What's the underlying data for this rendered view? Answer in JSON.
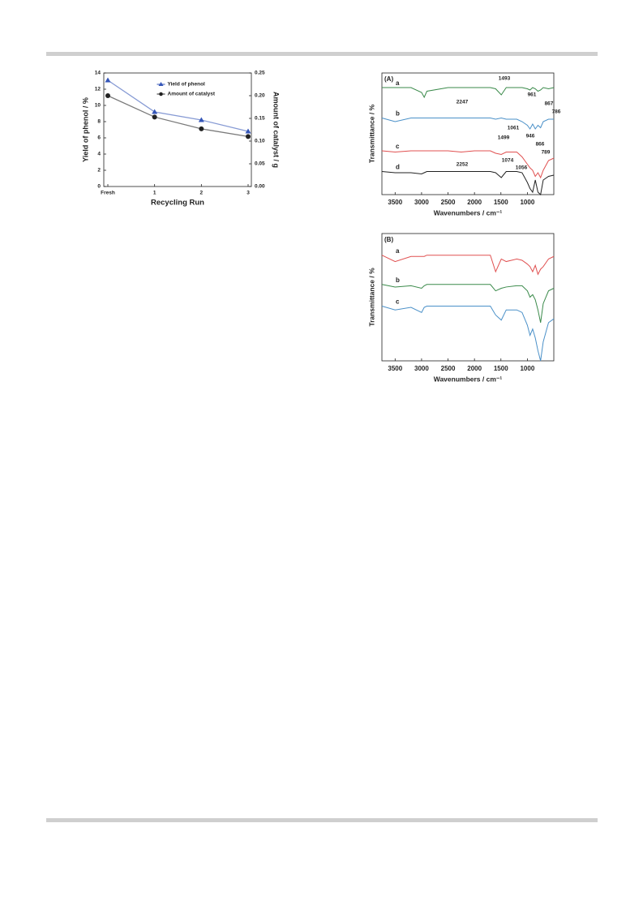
{
  "chart_data": [
    {
      "type": "line",
      "categories": [
        "Fresh",
        "1",
        "2",
        "3"
      ],
      "xlabel": "Recycling Run",
      "ylabel": "Yield of phenol / %",
      "y2label": "Amount of catalyst / g",
      "ylim": [
        0,
        14
      ],
      "yticks": [
        0,
        2,
        4,
        6,
        8,
        10,
        12,
        14
      ],
      "y2lim": [
        0,
        0.25
      ],
      "y2ticks": [
        {
          "value": 0,
          "label": "0.00"
        },
        0.05,
        {
          "value": 0.1,
          "label": "0.10"
        },
        0.15,
        {
          "value": 0.2,
          "label": "0.20"
        },
        0.25
      ],
      "legend": "top-right",
      "series": [
        {
          "name": "Yield of phenol",
          "color": "#3556b8",
          "marker": "triangle",
          "values": [
            13.1,
            9.2,
            8.2,
            6.8
          ]
        },
        {
          "name": "Amount of catalyst",
          "color": "#222222",
          "marker": "circle",
          "axis": "y2",
          "values": [
            0.2,
            0.153,
            0.127,
            0.11
          ]
        }
      ]
    },
    {
      "type": "spectrum",
      "panel_label": "(A)",
      "xlabel": "Wavenumbers / cm⁻¹",
      "ylabel": "Transmittance / %",
      "x": [
        3750,
        3500,
        3200,
        3000,
        2950,
        2900,
        2500,
        2250,
        2000,
        1700,
        1600,
        1493,
        1400,
        1200,
        1100,
        1000,
        950,
        900,
        850,
        800,
        750,
        700,
        600,
        500
      ],
      "xlim": [
        3750,
        500
      ],
      "xticks": [
        3500,
        3000,
        2500,
        2000,
        1500,
        1000
      ],
      "ylim": [
        0,
        100
      ],
      "series": [
        {
          "name": "a",
          "color": "#3a8a4a",
          "values": [
            88,
            88,
            88,
            84,
            80,
            85,
            88,
            88,
            88,
            88,
            87,
            82,
            88,
            88,
            88,
            87,
            86,
            88,
            87,
            85,
            86,
            88,
            87,
            88
          ]
        },
        {
          "name": "b",
          "color": "#4a90c8",
          "values": [
            63,
            60,
            63,
            63,
            63,
            63,
            63,
            63,
            63,
            63,
            62,
            63,
            62,
            62,
            60,
            57,
            54,
            58,
            54,
            57,
            55,
            60,
            62,
            62
          ]
        },
        {
          "name": "c",
          "color": "#e05050",
          "values": [
            36,
            35,
            36,
            36,
            36,
            36,
            36,
            35,
            36,
            36,
            34,
            33,
            35,
            35,
            31,
            25,
            22,
            20,
            15,
            18,
            14,
            20,
            28,
            30
          ]
        },
        {
          "name": "d",
          "color": "#222222",
          "values": [
            19,
            18,
            18,
            17,
            18,
            19,
            19,
            19,
            19,
            19,
            18,
            14,
            19,
            19,
            18,
            10,
            5,
            2,
            12,
            2,
            0,
            12,
            15,
            16
          ]
        }
      ],
      "annotations": [
        "1493",
        "2247",
        "961",
        "867",
        "786",
        "1061",
        "1499",
        "946",
        "866",
        "2252",
        "1074",
        "789",
        "1056"
      ]
    },
    {
      "type": "spectrum",
      "panel_label": "(B)",
      "xlabel": "Wavenumbers / cm⁻¹",
      "ylabel": "Transmittance / %",
      "x": [
        3750,
        3500,
        3200,
        3000,
        2950,
        2900,
        2500,
        2250,
        2000,
        1700,
        1600,
        1493,
        1400,
        1200,
        1100,
        1000,
        950,
        900,
        850,
        800,
        750,
        700,
        600,
        500
      ],
      "xlim": [
        3750,
        500
      ],
      "xticks": [
        3500,
        3000,
        2500,
        2000,
        1500,
        1000
      ],
      "ylim": [
        0,
        100
      ],
      "series": [
        {
          "name": "a",
          "color": "#e05050",
          "values": [
            83,
            78,
            82,
            82,
            82,
            83,
            83,
            83,
            83,
            83,
            70,
            80,
            78,
            80,
            79,
            76,
            74,
            70,
            75,
            68,
            72,
            74,
            80,
            82
          ]
        },
        {
          "name": "b",
          "color": "#3a8a4a",
          "values": [
            60,
            58,
            59,
            57,
            59,
            60,
            60,
            60,
            60,
            60,
            55,
            57,
            58,
            59,
            59,
            55,
            50,
            52,
            48,
            40,
            30,
            45,
            55,
            57
          ]
        },
        {
          "name": "c",
          "color": "#4a90c8",
          "values": [
            43,
            40,
            42,
            38,
            42,
            43,
            43,
            43,
            43,
            43,
            36,
            32,
            40,
            40,
            38,
            28,
            20,
            25,
            18,
            8,
            0,
            15,
            30,
            33
          ]
        }
      ]
    }
  ]
}
